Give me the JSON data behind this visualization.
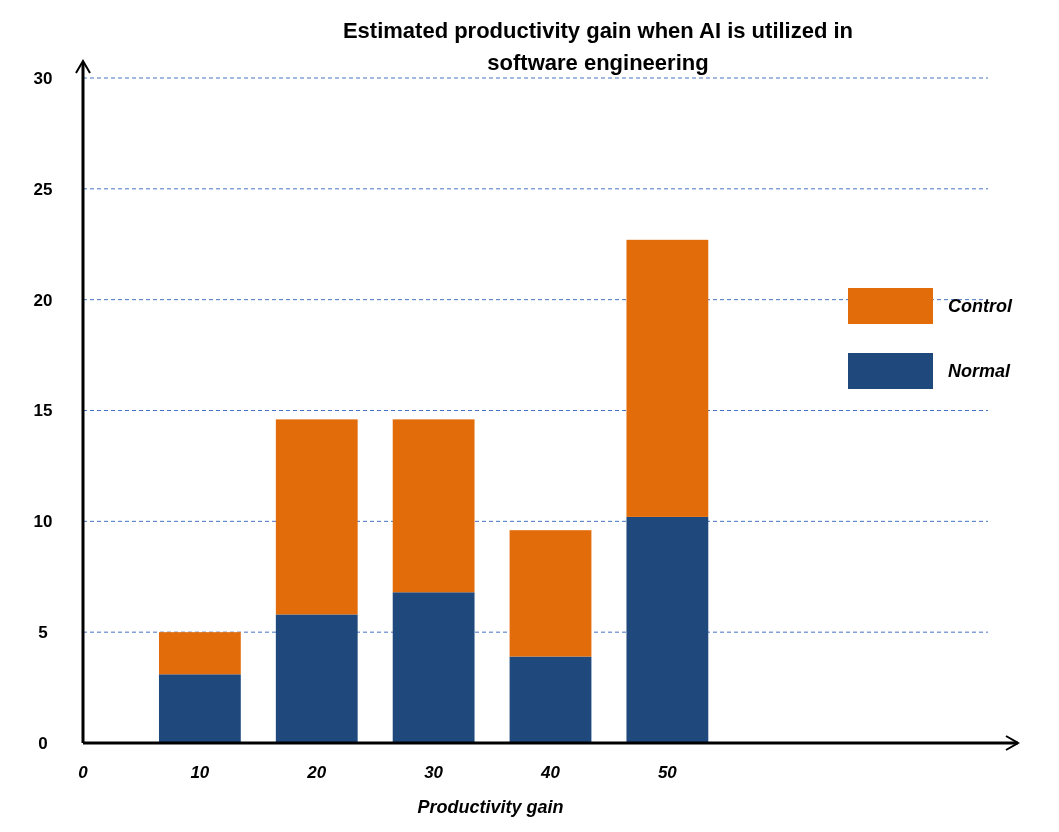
{
  "chart_data": {
    "type": "bar",
    "title": "Estimated productivity gain when AI is utilized in software engineering",
    "xlabel": "Productivity gain",
    "x": [
      10,
      20,
      30,
      40,
      50
    ],
    "stacked": true,
    "series": [
      {
        "name": "Normal",
        "color": "#1f497d",
        "values": [
          3.1,
          5.8,
          6.8,
          3.9,
          10.2
        ]
      },
      {
        "name": "Control",
        "color": "#e36c0a",
        "values": [
          1.9,
          8.8,
          7.8,
          5.7,
          12.5
        ]
      }
    ],
    "xlim": [
      0,
      80
    ],
    "xticks": [
      0,
      10,
      20,
      30,
      40,
      50
    ],
    "ylim": [
      0,
      30
    ],
    "yticks": [
      0,
      5,
      10,
      15,
      20,
      25,
      30
    ],
    "grid": "y",
    "legend": "right"
  }
}
